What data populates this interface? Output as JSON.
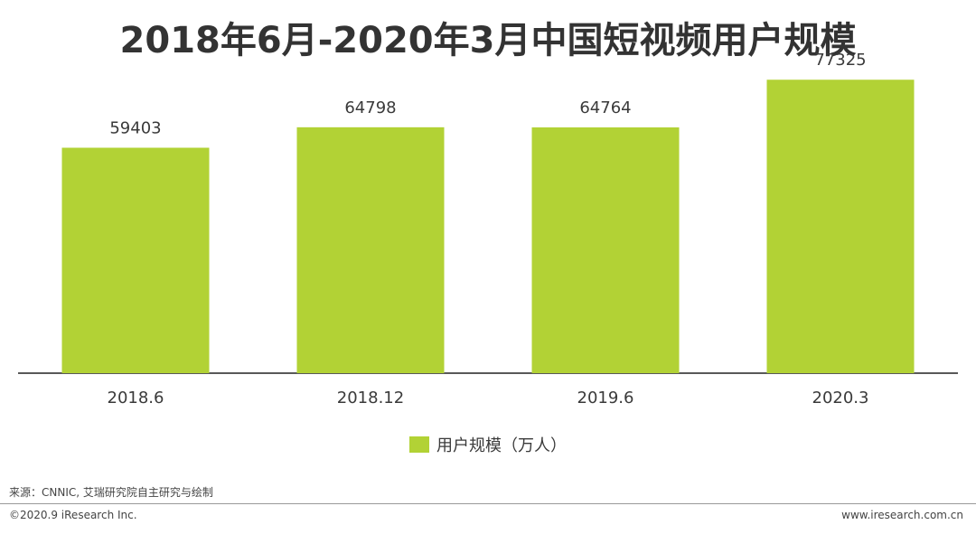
{
  "chart_data": {
    "type": "bar",
    "title": "2018年6月-2020年3月中国短视频用户规模",
    "categories": [
      "2018.6",
      "2018.12",
      "2019.6",
      "2020.3"
    ],
    "series": [
      {
        "name": "用户规模（万人）",
        "values": [
          59403,
          64798,
          64764,
          77325
        ],
        "color": "#b2d235"
      }
    ],
    "ylim": [
      0,
      85000
    ],
    "legend_position": "bottom",
    "grid": false
  },
  "footer": {
    "source": "来源：CNNIC, 艾瑞研究院自主研究与绘制",
    "copyright": "©2020.9 iResearch Inc.",
    "website": "www.iresearch.com.cn"
  }
}
